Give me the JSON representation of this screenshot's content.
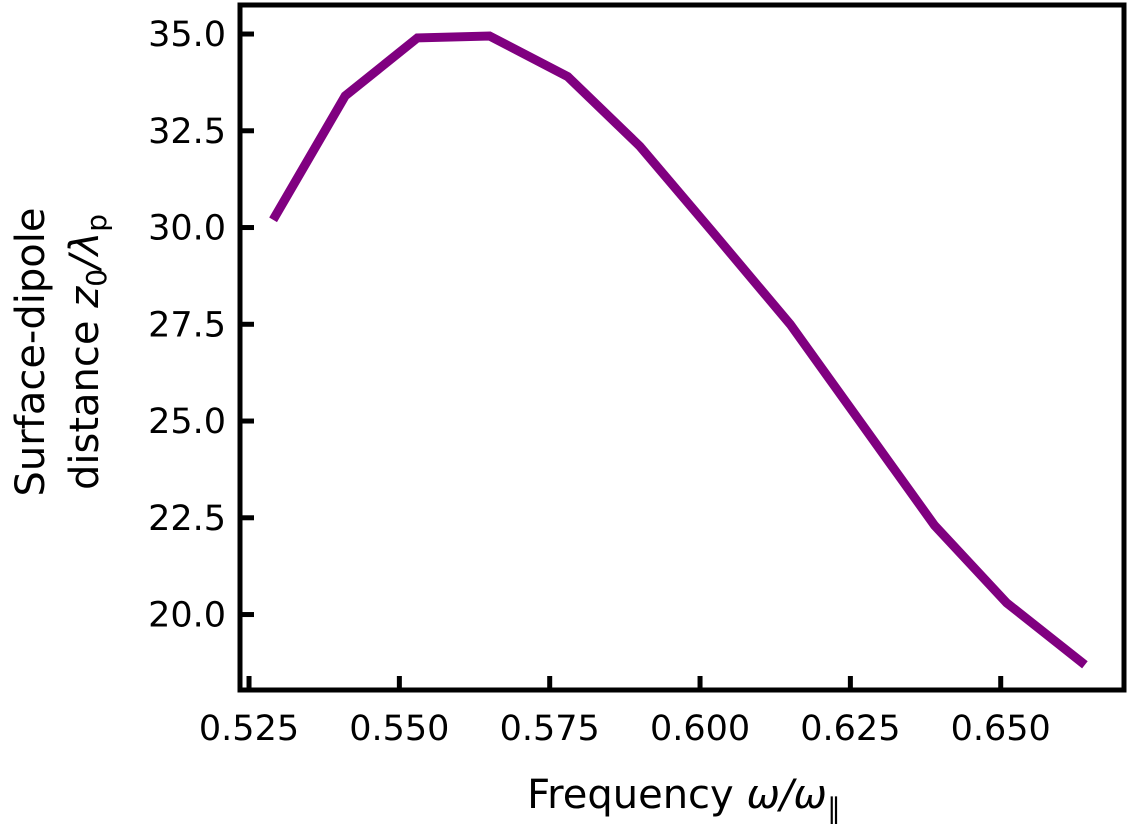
{
  "chart_data": {
    "type": "line",
    "title": "",
    "xlabel": {
      "text": "Frequency",
      "symbol": "ω/ω",
      "subscript": "∥"
    },
    "ylabel": {
      "line1": "Surface-dipole",
      "line2_text": "distance",
      "symbol_z": "z",
      "symbol_z_sub": "0",
      "symbol_lambda": "/λ",
      "symbol_lambda_sub": "p"
    },
    "xlim": [
      0.5235,
      0.6705
    ],
    "ylim": [
      18.05,
      35.75
    ],
    "xticks": [
      0.525,
      0.55,
      0.575,
      0.6,
      0.625,
      0.65
    ],
    "xtick_labels": [
      "0.525",
      "0.550",
      "0.575",
      "0.600",
      "0.625",
      "0.650"
    ],
    "yticks": [
      20.0,
      22.5,
      25.0,
      27.5,
      30.0,
      32.5,
      35.0
    ],
    "ytick_labels": [
      "20.0",
      "22.5",
      "25.0",
      "27.5",
      "30.0",
      "32.5",
      "35.0"
    ],
    "grid": false,
    "series": [
      {
        "color": "#800080",
        "x": [
          0.529,
          0.541,
          0.553,
          0.565,
          0.578,
          0.59,
          0.602,
          0.615,
          0.627,
          0.639,
          0.651,
          0.664
        ],
        "y": [
          30.2,
          33.4,
          34.9,
          34.95,
          33.9,
          32.1,
          29.9,
          27.5,
          24.9,
          22.3,
          20.3,
          18.7
        ]
      }
    ]
  }
}
